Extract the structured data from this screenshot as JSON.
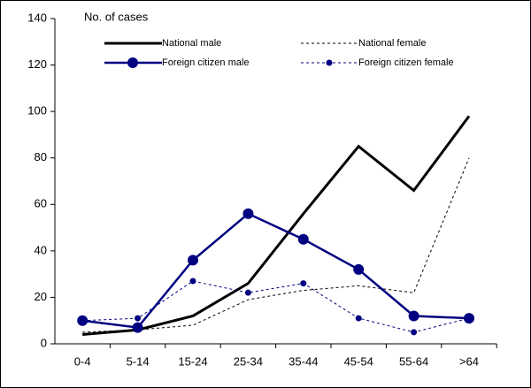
{
  "chart_data": {
    "type": "line",
    "y_label": "No. of cases",
    "categories": [
      "0-4",
      "5-14",
      "15-24",
      "25-34",
      "35-44",
      "45-54",
      "55-64",
      ">64"
    ],
    "series": [
      {
        "name": "National male",
        "color": "#000000",
        "line_style": "solid",
        "marker": "none",
        "values": [
          4,
          6,
          12,
          26,
          56,
          85,
          66,
          98
        ]
      },
      {
        "name": "National female",
        "color": "#000000",
        "line_style": "dashed",
        "marker": "none",
        "values": [
          5,
          6,
          8,
          19,
          23,
          25,
          22,
          80
        ]
      },
      {
        "name": "Foreign citizen male",
        "color": "#000080",
        "line_style": "solid",
        "marker": "large",
        "values": [
          10,
          7,
          36,
          56,
          45,
          32,
          12,
          11
        ]
      },
      {
        "name": "Foreign citizen female",
        "color": "#000080",
        "line_style": "dashed",
        "marker": "small",
        "values": [
          10,
          11,
          27,
          22,
          26,
          11,
          5,
          11
        ]
      }
    ],
    "ylim": [
      0,
      140
    ],
    "yticks": [
      0,
      20,
      40,
      60,
      80,
      100,
      120,
      140
    ]
  }
}
